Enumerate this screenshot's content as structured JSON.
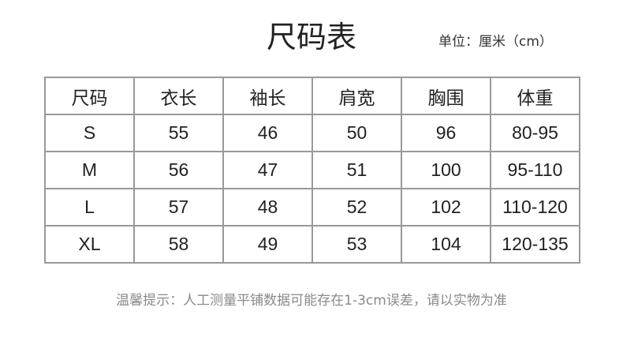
{
  "title": "尺码表",
  "unit": "单位：厘米（cm）",
  "table": {
    "headers": [
      "尺码",
      "衣长",
      "袖长",
      "肩宽",
      "胸围",
      "体重"
    ],
    "rows": [
      [
        "S",
        "55",
        "46",
        "50",
        "96",
        "80-95"
      ],
      [
        "M",
        "56",
        "47",
        "51",
        "100",
        "95-110"
      ],
      [
        "L",
        "57",
        "48",
        "52",
        "102",
        "110-120"
      ],
      [
        "XL",
        "58",
        "49",
        "53",
        "104",
        "120-135"
      ]
    ]
  },
  "note": "温馨提示：人工测量平铺数据可能存在1-3cm误差，请以实物为准"
}
